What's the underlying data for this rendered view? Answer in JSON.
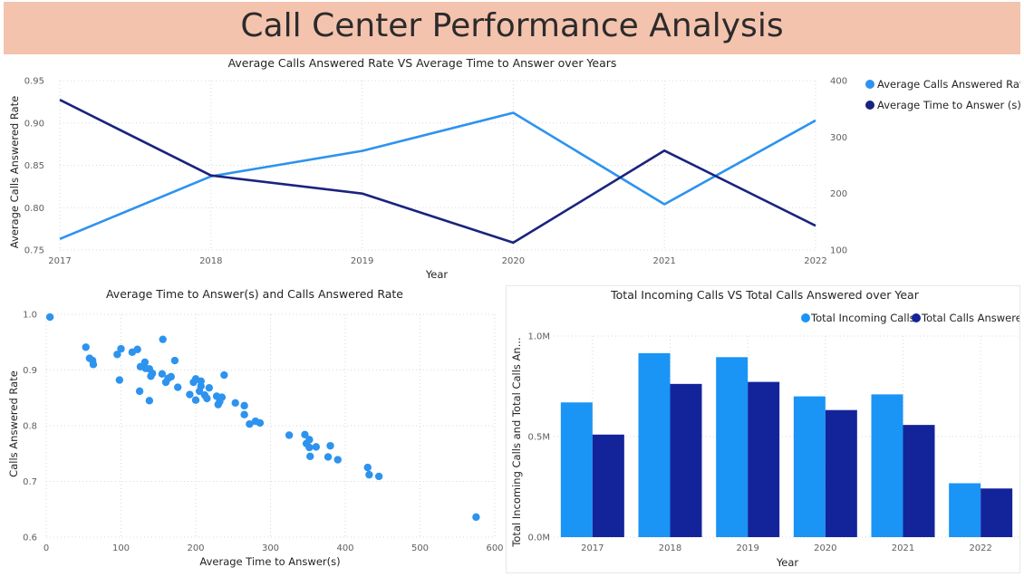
{
  "header": {
    "title": "Call Center Performance Analysis"
  },
  "colors": {
    "light_blue": "#2d93ee",
    "navy": "#1a237e",
    "bar_light": "#1a94f5",
    "bar_dark": "#13249a",
    "banner": "#f4c3ae"
  },
  "chart_data": [
    {
      "type": "line",
      "title": "Average Calls Answered Rate VS Average Time to Answer over Years",
      "xlabel": "Year",
      "ylabel": "Average Calls Answered Rate",
      "y2label": "",
      "x": [
        "2017",
        "2018",
        "2019",
        "2020",
        "2021",
        "2022"
      ],
      "ylim": [
        0.75,
        0.95
      ],
      "yticks": [
        "0.75",
        "0.80",
        "0.85",
        "0.90",
        "0.95"
      ],
      "y2lim": [
        100,
        400
      ],
      "y2ticks": [
        "100",
        "200",
        "300",
        "400"
      ],
      "series": [
        {
          "name": "Average Calls Answered Rate",
          "axis": "left",
          "color": "#2d93ee",
          "values": [
            0.763,
            0.837,
            0.867,
            0.912,
            0.804,
            0.903
          ]
        },
        {
          "name": "Average Time to Answer (s)",
          "axis": "right",
          "color": "#1a237e",
          "values": [
            366,
            232,
            200,
            113,
            276,
            143
          ]
        }
      ],
      "legend": "top-right",
      "grid": true
    },
    {
      "type": "scatter",
      "title": "Average Time to Answer(s) and Calls Answered Rate",
      "xlabel": "Average Time to Answer(s)",
      "ylabel": "Calls Answered Rate",
      "xlim": [
        0,
        600
      ],
      "xticks": [
        "0",
        "100",
        "200",
        "300",
        "400",
        "500",
        "600"
      ],
      "ylim": [
        0.6,
        1.0
      ],
      "yticks": [
        "0.6",
        "0.7",
        "0.8",
        "0.9",
        "1.0"
      ],
      "points": [
        [
          5,
          0.995
        ],
        [
          53,
          0.941
        ],
        [
          58,
          0.921
        ],
        [
          62,
          0.917
        ],
        [
          63,
          0.91
        ],
        [
          95,
          0.928
        ],
        [
          100,
          0.938
        ],
        [
          98,
          0.882
        ],
        [
          115,
          0.932
        ],
        [
          122,
          0.937
        ],
        [
          126,
          0.906
        ],
        [
          132,
          0.914
        ],
        [
          133,
          0.903
        ],
        [
          138,
          0.902
        ],
        [
          140,
          0.889
        ],
        [
          142,
          0.894
        ],
        [
          138,
          0.845
        ],
        [
          125,
          0.862
        ],
        [
          155,
          0.893
        ],
        [
          156,
          0.955
        ],
        [
          160,
          0.878
        ],
        [
          163,
          0.885
        ],
        [
          167,
          0.888
        ],
        [
          172,
          0.917
        ],
        [
          176,
          0.869
        ],
        [
          192,
          0.856
        ],
        [
          197,
          0.878
        ],
        [
          200,
          0.884
        ],
        [
          200,
          0.846
        ],
        [
          205,
          0.862
        ],
        [
          207,
          0.871
        ],
        [
          207,
          0.88
        ],
        [
          212,
          0.855
        ],
        [
          215,
          0.849
        ],
        [
          218,
          0.868
        ],
        [
          228,
          0.853
        ],
        [
          230,
          0.838
        ],
        [
          232,
          0.843
        ],
        [
          235,
          0.851
        ],
        [
          238,
          0.891
        ],
        [
          253,
          0.841
        ],
        [
          265,
          0.836
        ],
        [
          265,
          0.82
        ],
        [
          272,
          0.803
        ],
        [
          280,
          0.808
        ],
        [
          286,
          0.805
        ],
        [
          325,
          0.783
        ],
        [
          346,
          0.784
        ],
        [
          348,
          0.768
        ],
        [
          352,
          0.775
        ],
        [
          352,
          0.761
        ],
        [
          353,
          0.745
        ],
        [
          361,
          0.762
        ],
        [
          377,
          0.744
        ],
        [
          380,
          0.764
        ],
        [
          390,
          0.739
        ],
        [
          430,
          0.725
        ],
        [
          432,
          0.712
        ],
        [
          445,
          0.709
        ],
        [
          575,
          0.636
        ]
      ],
      "color": "#2d93ee",
      "grid": true
    },
    {
      "type": "bar",
      "title": "Total Incoming Calls VS Total Calls Answered over Year",
      "xlabel": "Year",
      "ylabel": "Total Incoming Calls and Total Calls An...",
      "categories": [
        "2017",
        "2018",
        "2019",
        "2020",
        "2021",
        "2022"
      ],
      "ylim": [
        0,
        1000000
      ],
      "yticks": [
        "0.0M",
        "0.5M",
        "1.0M"
      ],
      "series": [
        {
          "name": "Total Incoming Calls",
          "color": "#1a94f5",
          "values": [
            670000,
            915000,
            895000,
            700000,
            710000,
            268000
          ]
        },
        {
          "name": "Total Calls Answered",
          "color": "#13249a",
          "values": [
            510000,
            762000,
            772000,
            632000,
            558000,
            242000
          ]
        }
      ],
      "legend": "top-right",
      "grid": true
    }
  ]
}
